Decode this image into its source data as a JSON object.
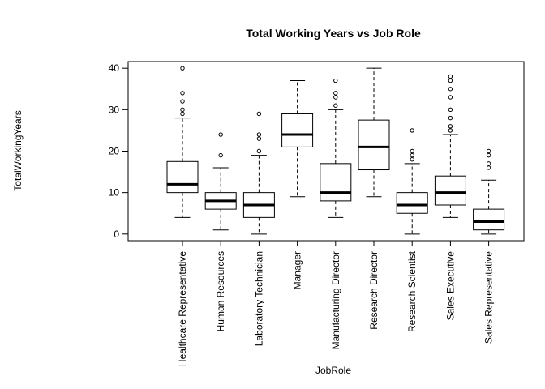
{
  "chart_data": {
    "type": "boxplot",
    "title": "Total Working Years vs Job Role",
    "xlabel": "JobRole",
    "ylabel": "TotalWorkingYears",
    "ylim": [
      -1.6,
      41.6
    ],
    "yticks": [
      0,
      10,
      20,
      30,
      40
    ],
    "grid": false,
    "legend": "none",
    "categories": [
      "Healthcare Representative",
      "Human Resources",
      "Laboratory Technician",
      "Manager",
      "Manufacturing Director",
      "Research Director",
      "Research Scientist",
      "Sales Executive",
      "Sales Representative"
    ],
    "boxes": [
      {
        "whisker_low": 4,
        "q1": 10,
        "median": 12,
        "q3": 17.5,
        "whisker_high": 28,
        "outliers": [
          29,
          30,
          32,
          34,
          40
        ]
      },
      {
        "whisker_low": 1,
        "q1": 6,
        "median": 8,
        "q3": 10,
        "whisker_high": 16,
        "outliers": [
          19,
          24
        ]
      },
      {
        "whisker_low": 0,
        "q1": 4,
        "median": 7,
        "q3": 10,
        "whisker_high": 19,
        "outliers": [
          20,
          23,
          24,
          29
        ]
      },
      {
        "whisker_low": 9,
        "q1": 21,
        "median": 24,
        "q3": 29,
        "whisker_high": 37,
        "outliers": []
      },
      {
        "whisker_low": 4,
        "q1": 8,
        "median": 10,
        "q3": 17,
        "whisker_high": 30,
        "outliers": [
          31,
          33,
          34,
          37
        ]
      },
      {
        "whisker_low": 9,
        "q1": 15.5,
        "median": 21,
        "q3": 27.5,
        "whisker_high": 40,
        "outliers": []
      },
      {
        "whisker_low": 0,
        "q1": 5,
        "median": 7,
        "q3": 10,
        "whisker_high": 17,
        "outliers": [
          18,
          19,
          20,
          25
        ]
      },
      {
        "whisker_low": 4,
        "q1": 7,
        "median": 10,
        "q3": 14,
        "whisker_high": 24,
        "outliers": [
          25,
          26,
          28,
          30,
          33,
          35,
          37,
          38
        ]
      },
      {
        "whisker_low": 0,
        "q1": 1,
        "median": 3,
        "q3": 6,
        "whisker_high": 13,
        "outliers": [
          16,
          17,
          19,
          20
        ]
      }
    ]
  }
}
